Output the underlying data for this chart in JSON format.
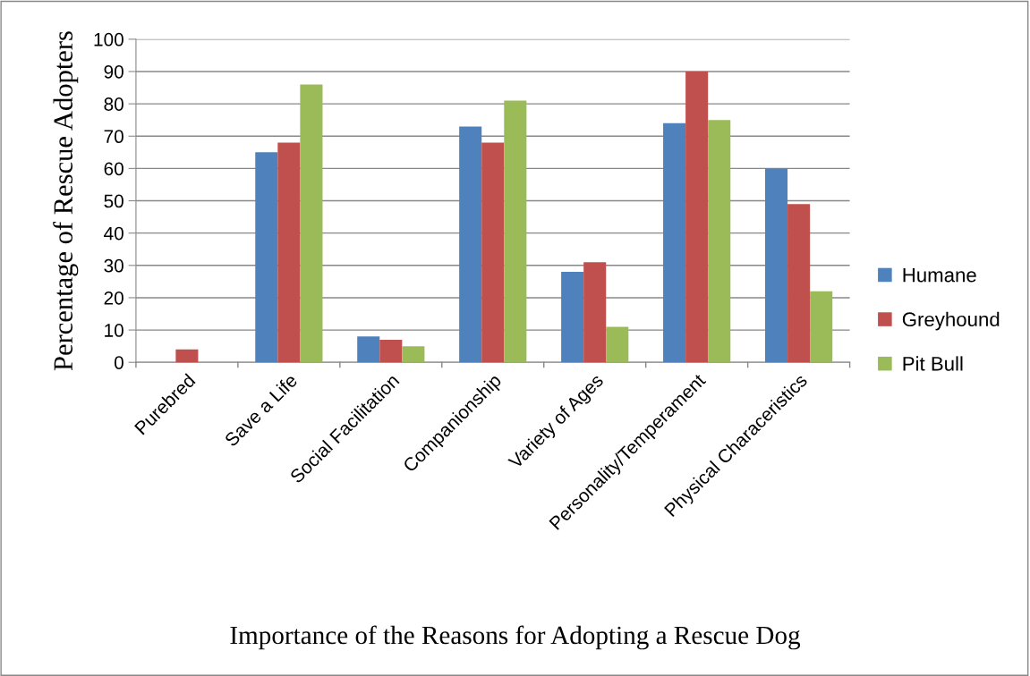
{
  "chart_data": {
    "type": "bar",
    "title": "Importance of the Reasons for Adopting a Rescue Dog",
    "ylabel": "Percentage of Rescue Adopters",
    "categories": [
      "Purebred",
      "Save a Life",
      "Social Facilitation",
      "Companionship",
      "Variety of Ages",
      "Personality/Temperament",
      "Physical Characeristics"
    ],
    "series": [
      {
        "name": "Humane",
        "color": "#4f81bd",
        "values": [
          0,
          65,
          8,
          73,
          28,
          74,
          60
        ]
      },
      {
        "name": "Greyhound",
        "color": "#c0504d",
        "values": [
          4,
          68,
          7,
          68,
          31,
          90,
          49
        ]
      },
      {
        "name": "Pit Bull",
        "color": "#9bbb59",
        "values": [
          0,
          86,
          5,
          81,
          11,
          75,
          22
        ]
      }
    ],
    "ylim": [
      0,
      100
    ],
    "yticks": [
      0,
      10,
      20,
      30,
      40,
      50,
      60,
      70,
      80,
      90,
      100
    ],
    "grid": "y",
    "legend": "right"
  }
}
